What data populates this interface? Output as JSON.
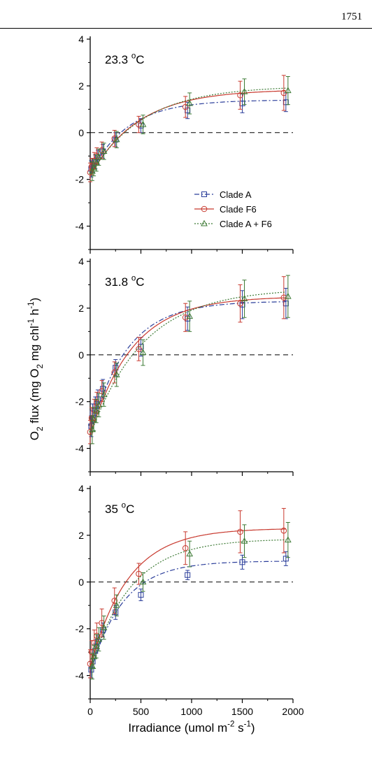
{
  "page": {
    "page_number": "1751"
  },
  "figure": {
    "ylabel_parts": [
      "O",
      "2",
      " flux (mg O",
      "2",
      " mg chl",
      "-1",
      " h",
      "-1",
      ")"
    ],
    "xlabel_parts": [
      "Irradiance (umol m",
      "-2",
      " s",
      "-1",
      ")"
    ]
  },
  "chart_data": [
    {
      "type": "line",
      "title": "23.3 °C",
      "title_parts": [
        "23.3 ",
        "o",
        "C"
      ],
      "xlim": [
        0,
        2000
      ],
      "ylim": [
        -5,
        4
      ],
      "yticks": [
        -4,
        -2,
        0,
        2,
        4
      ],
      "xticks": [],
      "reference_line": 0,
      "x": [
        10,
        25,
        50,
        75,
        125,
        250,
        500,
        960,
        1500,
        1930
      ],
      "series": [
        {
          "name": "Clade A",
          "color": "#2a3d9a",
          "marker": "square",
          "dash": "7,3,2,3",
          "values": [
            -1.55,
            -1.4,
            -1.25,
            -1.05,
            -0.8,
            -0.3,
            0.3,
            0.95,
            1.25,
            1.3
          ],
          "errors": [
            0.35,
            0.3,
            0.3,
            0.3,
            0.3,
            0.3,
            0.3,
            0.35,
            0.4,
            0.4
          ],
          "fit": {
            "pmax": 1.4,
            "r0": -1.75,
            "k": 0.0027
          }
        },
        {
          "name": "Clade F6",
          "color": "#c8392e",
          "marker": "circle",
          "dash": "",
          "values": [
            -1.7,
            -1.45,
            -1.2,
            -1.0,
            -0.75,
            -0.25,
            0.35,
            1.1,
            1.6,
            1.7
          ],
          "errors": [
            0.4,
            0.35,
            0.35,
            0.35,
            0.35,
            0.35,
            0.35,
            0.45,
            0.6,
            0.75
          ],
          "fit": {
            "pmax": 1.85,
            "r0": -1.85,
            "k": 0.0021
          }
        },
        {
          "name": "Clade A + F6",
          "color": "#3d7a35",
          "marker": "triangle",
          "dash": "2,2",
          "values": [
            -1.65,
            -1.5,
            -1.3,
            -1.05,
            -0.8,
            -0.3,
            0.35,
            1.25,
            1.75,
            1.8
          ],
          "errors": [
            0.4,
            0.35,
            0.35,
            0.35,
            0.35,
            0.35,
            0.4,
            0.45,
            0.55,
            0.6
          ],
          "fit": {
            "pmax": 2.0,
            "r0": -1.8,
            "k": 0.0019
          }
        }
      ],
      "legend": {
        "placement": "bottom-right",
        "entries": [
          "Clade A",
          "Clade F6",
          "Clade A + F6"
        ]
      }
    },
    {
      "type": "line",
      "title": "31.8 °C",
      "title_parts": [
        "31.8 ",
        "o",
        "C"
      ],
      "xlim": [
        0,
        2000
      ],
      "ylim": [
        -5,
        4
      ],
      "yticks": [
        -4,
        -2,
        0,
        2,
        4
      ],
      "xticks": [],
      "reference_line": 0,
      "x": [
        10,
        25,
        50,
        75,
        125,
        250,
        500,
        960,
        1500,
        1930
      ],
      "series": [
        {
          "name": "Clade A",
          "color": "#2a3d9a",
          "marker": "square",
          "dash": "7,3,2,3",
          "values": [
            -3.05,
            -2.5,
            -2.2,
            -1.9,
            -1.45,
            -0.55,
            0.35,
            1.55,
            2.15,
            2.2
          ],
          "errors": [
            0.45,
            0.4,
            0.4,
            0.4,
            0.4,
            0.35,
            0.4,
            0.5,
            0.6,
            0.65
          ],
          "fit": {
            "pmax": 2.3,
            "r0": -3.4,
            "k": 0.0028
          }
        },
        {
          "name": "Clade F6",
          "color": "#c8392e",
          "marker": "circle",
          "dash": "",
          "values": [
            -3.3,
            -2.7,
            -2.35,
            -2.05,
            -1.55,
            -0.75,
            0.25,
            1.6,
            2.2,
            2.45
          ],
          "errors": [
            0.5,
            0.45,
            0.45,
            0.45,
            0.45,
            0.45,
            0.5,
            0.6,
            0.8,
            0.9
          ],
          "fit": {
            "pmax": 2.5,
            "r0": -3.45,
            "k": 0.0024
          }
        },
        {
          "name": "Clade A + F6",
          "color": "#3d7a35",
          "marker": "triangle",
          "dash": "2,2",
          "values": [
            -3.2,
            -2.75,
            -2.4,
            -2.15,
            -1.7,
            -0.85,
            0.1,
            1.65,
            2.4,
            2.5
          ],
          "errors": [
            0.6,
            0.5,
            0.5,
            0.5,
            0.5,
            0.5,
            0.55,
            0.65,
            0.8,
            0.9
          ],
          "fit": {
            "pmax": 2.85,
            "r0": -3.45,
            "k": 0.0019
          }
        }
      ]
    },
    {
      "type": "line",
      "title": "35 °C",
      "title_parts": [
        "35 ",
        "o",
        "C"
      ],
      "xlim": [
        0,
        2000
      ],
      "ylim": [
        -5,
        4
      ],
      "yticks": [
        -4,
        -2,
        0,
        2,
        4
      ],
      "xticks": [
        0,
        500,
        1000,
        1500,
        2000
      ],
      "reference_line": 0,
      "x": [
        10,
        25,
        50,
        75,
        125,
        250,
        500,
        960,
        1500,
        1930
      ],
      "series": [
        {
          "name": "Clade A",
          "color": "#2a3d9a",
          "marker": "square",
          "dash": "7,3,2,3",
          "values": [
            -3.75,
            -3.4,
            -2.95,
            -2.55,
            -2.05,
            -1.3,
            -0.55,
            0.3,
            0.85,
            1.0
          ],
          "errors": [
            0.35,
            0.3,
            0.3,
            0.3,
            0.3,
            0.3,
            0.25,
            0.2,
            0.3,
            0.3
          ],
          "fit": {
            "pmax": 0.9,
            "r0": -3.9,
            "k": 0.0031
          }
        },
        {
          "name": "Clade F6",
          "color": "#c8392e",
          "marker": "circle",
          "dash": "",
          "values": [
            -3.5,
            -3.0,
            -2.6,
            -2.3,
            -1.75,
            -0.8,
            0.35,
            1.45,
            2.15,
            2.2
          ],
          "errors": [
            0.6,
            0.5,
            0.55,
            0.55,
            0.6,
            0.55,
            0.45,
            0.7,
            0.9,
            0.95
          ],
          "fit": {
            "pmax": 2.3,
            "r0": -3.65,
            "k": 0.0027
          }
        },
        {
          "name": "Clade A + F6",
          "color": "#3d7a35",
          "marker": "triangle",
          "dash": "2,2",
          "values": [
            -3.6,
            -3.2,
            -2.75,
            -2.45,
            -1.95,
            -1.0,
            0.0,
            1.2,
            1.75,
            1.8
          ],
          "errors": [
            0.55,
            0.5,
            0.5,
            0.5,
            0.5,
            0.45,
            0.4,
            0.55,
            0.7,
            0.75
          ],
          "fit": {
            "pmax": 1.85,
            "r0": -3.75,
            "k": 0.0025
          }
        }
      ]
    }
  ]
}
